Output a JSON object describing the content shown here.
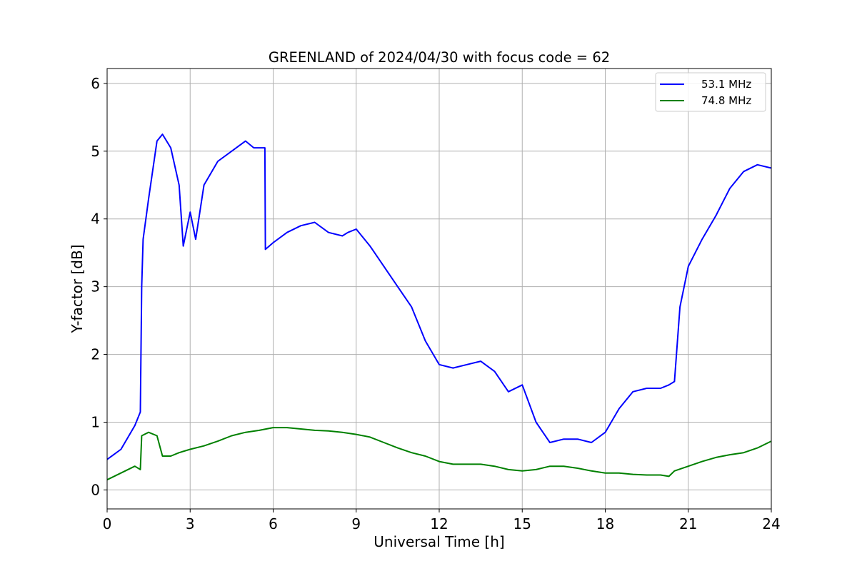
{
  "chart_data": {
    "type": "line",
    "title": "GREENLAND of 2024/04/30 with focus code = 62",
    "xlabel": "Universal Time [h]",
    "ylabel": "Y-factor [dB]",
    "xlim": [
      0,
      24
    ],
    "ylim": [
      -0.28,
      6.22
    ],
    "xticks": [
      0,
      3,
      6,
      9,
      12,
      15,
      18,
      21,
      24
    ],
    "yticks": [
      0,
      1,
      2,
      3,
      4,
      5,
      6
    ],
    "grid": true,
    "legend_position": "top-right",
    "series": [
      {
        "name": "53.1 MHz",
        "color": "#0000ff",
        "x": [
          0,
          0.5,
          1.0,
          1.2,
          1.25,
          1.3,
          1.5,
          1.8,
          2.0,
          2.3,
          2.6,
          2.75,
          3.0,
          3.2,
          3.5,
          4.0,
          4.5,
          5.0,
          5.3,
          5.7,
          5.72,
          6.0,
          6.5,
          7.0,
          7.5,
          8.0,
          8.5,
          8.7,
          9.0,
          9.5,
          10.0,
          10.5,
          11.0,
          11.5,
          12.0,
          12.5,
          13.0,
          13.5,
          14.0,
          14.5,
          15.0,
          15.5,
          16.0,
          16.5,
          17.0,
          17.5,
          18.0,
          18.5,
          19.0,
          19.5,
          20.0,
          20.3,
          20.5,
          20.7,
          21.0,
          21.5,
          22.0,
          22.5,
          23.0,
          23.5,
          24.0
        ],
        "y": [
          0.45,
          0.6,
          0.95,
          1.15,
          3.0,
          3.7,
          4.3,
          5.15,
          5.25,
          5.05,
          4.5,
          3.6,
          4.1,
          3.7,
          4.5,
          4.85,
          5.0,
          5.15,
          5.05,
          5.05,
          3.55,
          3.65,
          3.8,
          3.9,
          3.95,
          3.8,
          3.75,
          3.8,
          3.85,
          3.6,
          3.3,
          3.0,
          2.7,
          2.2,
          1.85,
          1.8,
          1.85,
          1.9,
          1.75,
          1.45,
          1.55,
          1.0,
          0.7,
          0.75,
          0.75,
          0.7,
          0.85,
          1.2,
          1.45,
          1.5,
          1.5,
          1.55,
          1.6,
          2.7,
          3.3,
          3.7,
          4.05,
          4.45,
          4.7,
          4.8,
          4.75
        ]
      },
      {
        "name": "74.8 MHz",
        "color": "#008000",
        "x": [
          0,
          0.5,
          1.0,
          1.2,
          1.25,
          1.5,
          1.8,
          2.0,
          2.3,
          2.6,
          3.0,
          3.5,
          4.0,
          4.5,
          5.0,
          5.5,
          6.0,
          6.5,
          7.0,
          7.5,
          8.0,
          8.5,
          9.0,
          9.5,
          10.0,
          10.5,
          11.0,
          11.5,
          12.0,
          12.5,
          13.0,
          13.5,
          14.0,
          14.5,
          15.0,
          15.5,
          16.0,
          16.5,
          17.0,
          17.5,
          18.0,
          18.5,
          19.0,
          19.5,
          20.0,
          20.3,
          20.5,
          21.0,
          21.5,
          22.0,
          22.5,
          23.0,
          23.5,
          24.0
        ],
        "y": [
          0.15,
          0.25,
          0.35,
          0.3,
          0.8,
          0.85,
          0.8,
          0.5,
          0.5,
          0.55,
          0.6,
          0.65,
          0.72,
          0.8,
          0.85,
          0.88,
          0.92,
          0.92,
          0.9,
          0.88,
          0.87,
          0.85,
          0.82,
          0.78,
          0.7,
          0.62,
          0.55,
          0.5,
          0.42,
          0.38,
          0.38,
          0.38,
          0.35,
          0.3,
          0.28,
          0.3,
          0.35,
          0.35,
          0.32,
          0.28,
          0.25,
          0.25,
          0.23,
          0.22,
          0.22,
          0.2,
          0.28,
          0.35,
          0.42,
          0.48,
          0.52,
          0.55,
          0.62,
          0.72
        ]
      }
    ]
  }
}
